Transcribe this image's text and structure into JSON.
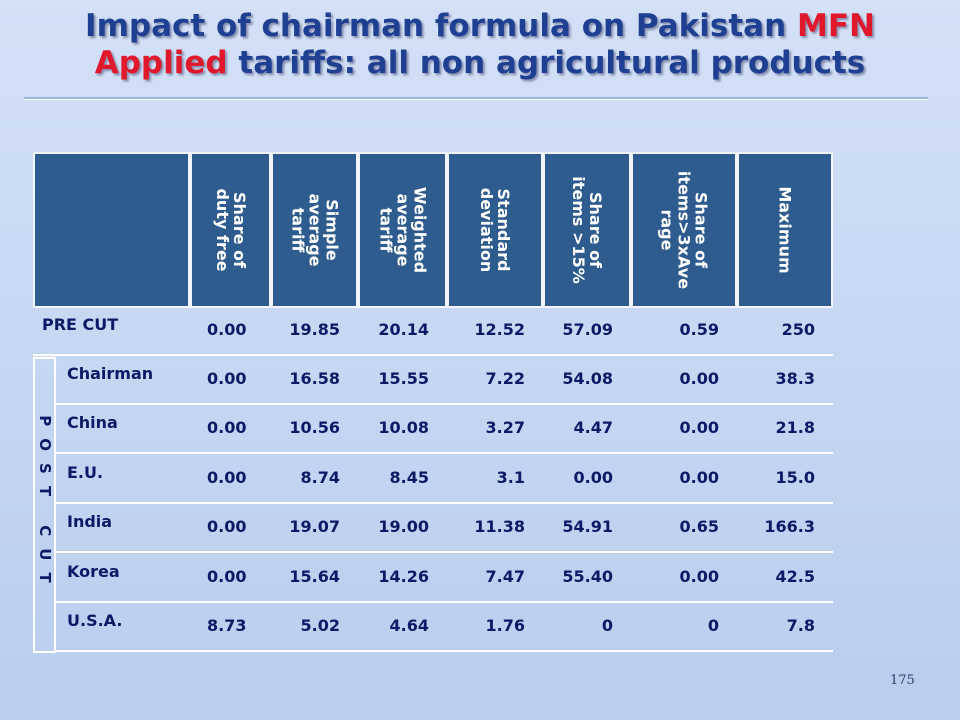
{
  "title": {
    "part1": "Impact of chairman formula on Pakistan ",
    "part2": "MFN",
    "part3": "Applied",
    "part4": " tariffs: all non agricultural products"
  },
  "table": {
    "columns": [
      {
        "lines": [
          "Share of",
          "duty free"
        ]
      },
      {
        "lines": [
          "Simple",
          "average",
          "tariff"
        ]
      },
      {
        "lines": [
          "Weighted",
          "average",
          "tariff"
        ]
      },
      {
        "lines": [
          "Standard",
          "deviation"
        ]
      },
      {
        "lines": [
          "Share of",
          "items >15%"
        ]
      },
      {
        "lines": [
          "Share of",
          "items>3xAve",
          "rage"
        ]
      },
      {
        "lines": [
          "Maximum"
        ]
      }
    ],
    "pre_cut": {
      "label": "PRE CUT",
      "values": [
        "0.00",
        "19.85",
        "20.14",
        "12.52",
        "57.09",
        "0.59",
        "250"
      ]
    },
    "post_cut_label": "POST CUT",
    "post_cut_rows": [
      {
        "label": "Chairman",
        "values": [
          "0.00",
          "16.58",
          "15.55",
          "7.22",
          "54.08",
          "0.00",
          "38.3"
        ]
      },
      {
        "label": "China",
        "values": [
          "0.00",
          "10.56",
          "10.08",
          "3.27",
          "4.47",
          "0.00",
          "21.8"
        ]
      },
      {
        "label": "E.U.",
        "values": [
          "0.00",
          "8.74",
          "8.45",
          "3.1",
          "0.00",
          "0.00",
          "15.0"
        ]
      },
      {
        "label": "India",
        "values": [
          "0.00",
          "19.07",
          "19.00",
          "11.38",
          "54.91",
          "0.65",
          "166.3"
        ]
      },
      {
        "label": "Korea",
        "values": [
          "0.00",
          "15.64",
          "14.26",
          "7.47",
          "55.40",
          "0.00",
          "42.5"
        ]
      },
      {
        "label": "U.S.A.",
        "values": [
          "8.73",
          "5.02",
          "4.64",
          "1.76",
          "0",
          "0",
          "7.8"
        ]
      }
    ]
  },
  "page_number": "175",
  "colors": {
    "title_blue": "#1f3f93",
    "title_red": "#e0182c",
    "header_bg": "#2f5c8f",
    "cell_text": "#0c1a66"
  }
}
